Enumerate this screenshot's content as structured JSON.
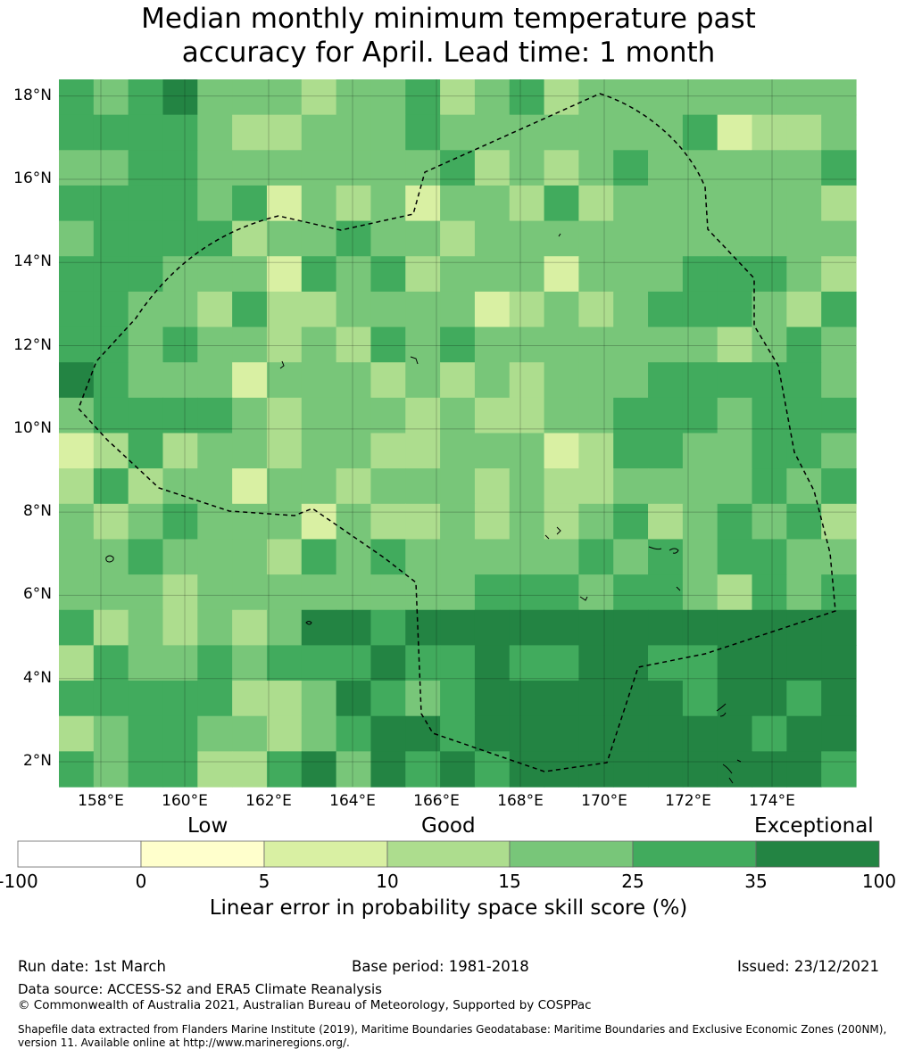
{
  "title_line1": "Median monthly minimum temperature past",
  "title_line2": "accuracy for April. Lead time: 1 month",
  "map": {
    "lon_range": [
      157.0,
      176.0
    ],
    "lat_range": [
      1.4,
      18.4
    ],
    "y_ticks": [
      "18°N",
      "16°N",
      "14°N",
      "12°N",
      "10°N",
      "8°N",
      "6°N",
      "4°N",
      "2°N"
    ],
    "x_ticks": [
      "158°E",
      "160°E",
      "162°E",
      "164°E",
      "166°E",
      "168°E",
      "170°E",
      "172°E",
      "174°E"
    ],
    "gridlines": true,
    "grid_cell_deg": 0.833,
    "boundary_description": "dashed EEZ boundary"
  },
  "colorbar": {
    "categories": [
      "Low",
      "Good",
      "Exceptional"
    ],
    "ticks": [
      "-100",
      "0",
      "5",
      "10",
      "15",
      "25",
      "35",
      "100"
    ],
    "colors": [
      "#ffffff",
      "#ffffcc",
      "#d9f0a3",
      "#addd8e",
      "#78c679",
      "#41ab5d",
      "#238443"
    ],
    "label": "Linear error in probability space skill score (%)"
  },
  "footer": {
    "run_date": "Run date: 1st March",
    "base_period": "Base period: 1981-2018",
    "issued": "Issued: 23/12/2021",
    "data_source": "Data source: ACCESS-S2 and ERA5 Climate Reanalysis",
    "copyright": "© Commonwealth of Australia 2021, Australian Bureau of Meteorology, Supported by COSPPac",
    "shapefile": "Shapefile data extracted from Flanders Marine Institute (2019), Maritime Boundaries Geodatabase: Maritime Boundaries and Exclusive Economic Zones (200NM), version 11. Available online at http://www.marineregions.org/."
  }
}
